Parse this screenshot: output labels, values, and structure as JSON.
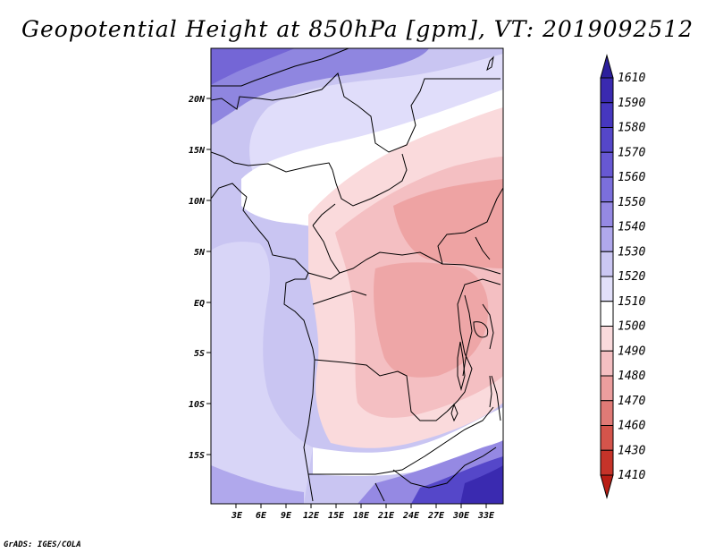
{
  "title": "Geopotential Height at 850hPa [gpm], VT: 2019092512",
  "credit": "GrADS: IGES/COLA",
  "map": {
    "lat_labels": [
      "20N",
      "15N",
      "10N",
      "5N",
      "EQ",
      "5S",
      "10S",
      "15S"
    ],
    "lon_labels": [
      "3E",
      "6E",
      "9E",
      "12E",
      "15E",
      "18E",
      "21E",
      "24E",
      "27E",
      "30E",
      "33E"
    ]
  },
  "colorbar": {
    "levels": [
      "1610",
      "1590",
      "1580",
      "1570",
      "1560",
      "1550",
      "1540",
      "1530",
      "1520",
      "1510",
      "1500",
      "1490",
      "1480",
      "1470",
      "1460",
      "1430",
      "1410"
    ],
    "colors": [
      "#2c1f9c",
      "#3a2ab0",
      "#4637bf",
      "#5547c9",
      "#6758d3",
      "#7b6fdc",
      "#9589e3",
      "#b0a8ec",
      "#cbc7f3",
      "#e2e0fa",
      "#ffffff",
      "#fadadc",
      "#f4bfc2",
      "#ec9e9e",
      "#e07a76",
      "#d4544b",
      "#c63329",
      "#b81d14"
    ]
  }
}
